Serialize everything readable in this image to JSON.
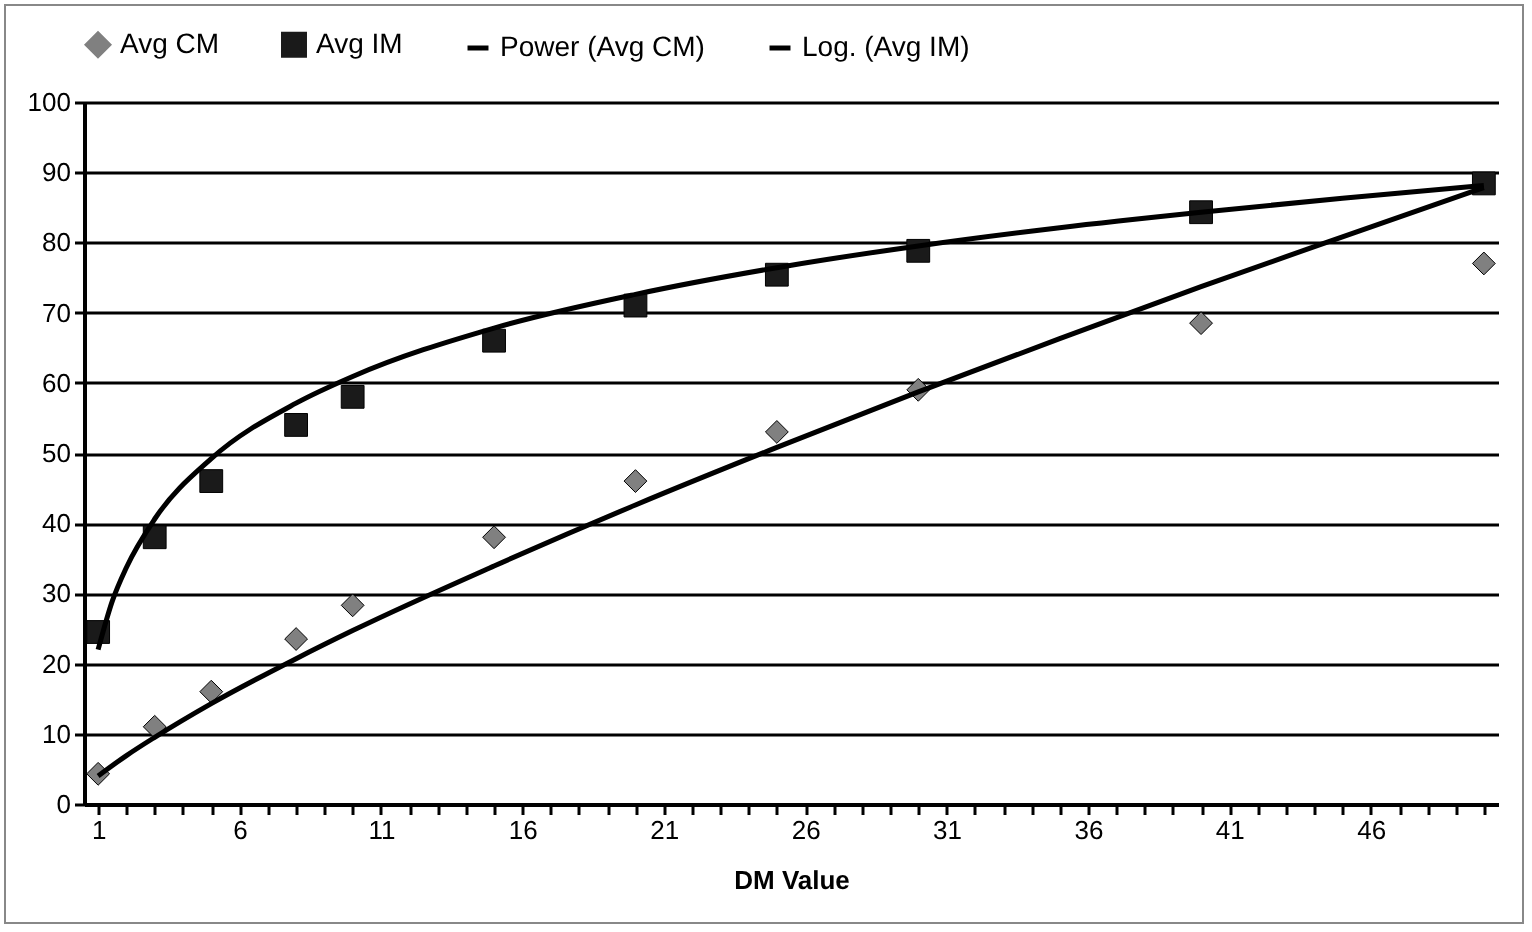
{
  "chart_data": {
    "type": "scatter",
    "xlabel": "DM Value",
    "x": [
      1,
      3,
      5,
      8,
      10,
      15,
      20,
      25,
      30,
      40,
      50
    ],
    "series": [
      {
        "name": "Avg CM",
        "type": "scatter",
        "marker": "diamond",
        "color": "#808080",
        "values": [
          4.3,
          11,
          16,
          23.5,
          28.3,
          38,
          46,
          53,
          59,
          68.5,
          77
        ]
      },
      {
        "name": "Avg IM",
        "type": "scatter",
        "marker": "square",
        "color": "#1a1a1a",
        "values": [
          24.5,
          38,
          46,
          54,
          58,
          66,
          71,
          75.4,
          78.8,
          84.3,
          88.4
        ]
      },
      {
        "name": "Power (Avg CM)",
        "type": "line",
        "color": "#000000",
        "x": [
          1,
          2,
          3,
          5,
          8,
          10,
          15,
          20,
          25,
          30,
          35,
          40,
          45,
          50
        ],
        "values": [
          4,
          6.9,
          9.5,
          14.3,
          20.7,
          24.7,
          33.9,
          42.6,
          50.8,
          58.7,
          66.3,
          73.7,
          80.8,
          87.8
        ]
      },
      {
        "name": "Log. (Avg IM)",
        "type": "line",
        "color": "#000000",
        "x": [
          1,
          1.5,
          2,
          3,
          5,
          8,
          10,
          15,
          20,
          25,
          30,
          35,
          40,
          45,
          50
        ],
        "values": [
          22,
          28.9,
          33.7,
          40.6,
          49.2,
          57.1,
          60.9,
          67.8,
          72.6,
          76.4,
          79.5,
          82.1,
          84.3,
          86.3,
          88.1
        ]
      }
    ],
    "xlim": [
      0.5,
      50.5
    ],
    "xticks": [
      1,
      {
        "value": 2,
        "label": null
      },
      {
        "value": 3,
        "label": null
      },
      {
        "value": 4,
        "label": null
      },
      {
        "value": 5,
        "label": null
      },
      6,
      {
        "value": 7,
        "label": null
      },
      {
        "value": 8,
        "label": null
      },
      {
        "value": 9,
        "label": null
      },
      {
        "value": 10,
        "label": null
      },
      11,
      {
        "value": 12,
        "label": null
      },
      {
        "value": 13,
        "label": null
      },
      {
        "value": 14,
        "label": null
      },
      {
        "value": 15,
        "label": null
      },
      16,
      {
        "value": 17,
        "label": null
      },
      {
        "value": 18,
        "label": null
      },
      {
        "value": 19,
        "label": null
      },
      {
        "value": 20,
        "label": null
      },
      21,
      {
        "value": 22,
        "label": null
      },
      {
        "value": 23,
        "label": null
      },
      {
        "value": 24,
        "label": null
      },
      {
        "value": 25,
        "label": null
      },
      26,
      {
        "value": 27,
        "label": null
      },
      {
        "value": 28,
        "label": null
      },
      {
        "value": 29,
        "label": null
      },
      {
        "value": 30,
        "label": null
      },
      31,
      {
        "value": 32,
        "label": null
      },
      {
        "value": 33,
        "label": null
      },
      {
        "value": 34,
        "label": null
      },
      {
        "value": 35,
        "label": null
      },
      36,
      {
        "value": 37,
        "label": null
      },
      {
        "value": 38,
        "label": null
      },
      {
        "value": 39,
        "label": null
      },
      {
        "value": 40,
        "label": null
      },
      41,
      {
        "value": 42,
        "label": null
      },
      {
        "value": 43,
        "label": null
      },
      {
        "value": 44,
        "label": null
      },
      {
        "value": 45,
        "label": null
      },
      46,
      {
        "value": 47,
        "label": null
      },
      {
        "value": 48,
        "label": null
      },
      {
        "value": 49,
        "label": null
      },
      {
        "value": 50,
        "label": null
      }
    ],
    "ylim": [
      0,
      100
    ],
    "yticks": [
      0,
      10,
      20,
      30,
      40,
      50,
      60,
      70,
      80,
      90,
      100
    ],
    "grid": "y",
    "legend": "top"
  }
}
